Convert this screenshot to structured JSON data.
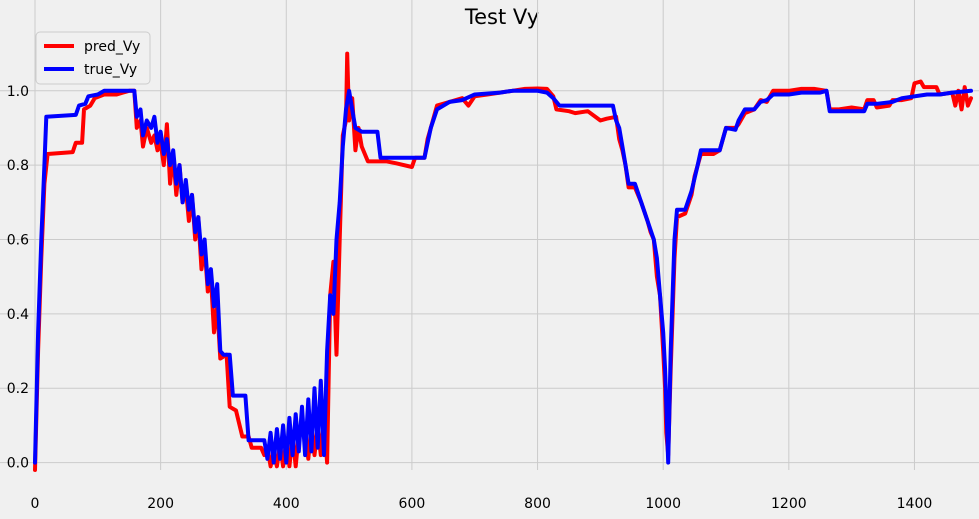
{
  "chart_data": {
    "type": "line",
    "title": "Test Vy",
    "xlabel": "",
    "ylabel": "",
    "xlim": [
      0,
      1490
    ],
    "ylim": [
      -0.02,
      1.15
    ],
    "xticks": [
      0,
      200,
      400,
      600,
      800,
      1000,
      1200,
      1400
    ],
    "yticks": [
      0.0,
      0.2,
      0.4,
      0.6,
      0.8,
      1.0
    ],
    "xtick_labels": [
      "0",
      "200",
      "400",
      "600",
      "800",
      "1000",
      "1200",
      "1400"
    ],
    "ytick_labels": [
      "0.0",
      "0.2",
      "0.4",
      "0.6",
      "0.8",
      "1.0"
    ],
    "grid": true,
    "legend_position": "top-left",
    "series": [
      {
        "name": "pred_Vy",
        "color": "#ff0000",
        "points": [
          [
            0,
            -0.02
          ],
          [
            5,
            0.3
          ],
          [
            10,
            0.55
          ],
          [
            15,
            0.75
          ],
          [
            20,
            0.83
          ],
          [
            60,
            0.835
          ],
          [
            65,
            0.86
          ],
          [
            75,
            0.86
          ],
          [
            78,
            0.95
          ],
          [
            88,
            0.96
          ],
          [
            95,
            0.98
          ],
          [
            110,
            0.99
          ],
          [
            130,
            0.99
          ],
          [
            140,
            0.995
          ],
          [
            150,
            1.0
          ],
          [
            158,
            1.0
          ],
          [
            162,
            0.9
          ],
          [
            168,
            0.92
          ],
          [
            172,
            0.85
          ],
          [
            178,
            0.9
          ],
          [
            185,
            0.86
          ],
          [
            190,
            0.88
          ],
          [
            195,
            0.84
          ],
          [
            200,
            0.86
          ],
          [
            205,
            0.8
          ],
          [
            210,
            0.91
          ],
          [
            215,
            0.75
          ],
          [
            220,
            0.83
          ],
          [
            225,
            0.72
          ],
          [
            230,
            0.8
          ],
          [
            235,
            0.7
          ],
          [
            240,
            0.74
          ],
          [
            245,
            0.65
          ],
          [
            250,
            0.72
          ],
          [
            255,
            0.6
          ],
          [
            260,
            0.66
          ],
          [
            265,
            0.52
          ],
          [
            270,
            0.58
          ],
          [
            275,
            0.46
          ],
          [
            280,
            0.5
          ],
          [
            285,
            0.35
          ],
          [
            290,
            0.42
          ],
          [
            295,
            0.28
          ],
          [
            305,
            0.29
          ],
          [
            310,
            0.15
          ],
          [
            320,
            0.14
          ],
          [
            330,
            0.07
          ],
          [
            340,
            0.07
          ],
          [
            345,
            0.04
          ],
          [
            360,
            0.04
          ],
          [
            365,
            0.02
          ],
          [
            370,
            0.04
          ],
          [
            375,
            -0.01
          ],
          [
            380,
            0.03
          ],
          [
            385,
            -0.01
          ],
          [
            390,
            0.05
          ],
          [
            395,
            -0.01
          ],
          [
            400,
            0.06
          ],
          [
            405,
            -0.01
          ],
          [
            410,
            0.07
          ],
          [
            415,
            -0.01
          ],
          [
            420,
            0.08
          ],
          [
            430,
            0.08
          ],
          [
            435,
            0.01
          ],
          [
            440,
            0.1
          ],
          [
            445,
            0.02
          ],
          [
            450,
            0.1
          ],
          [
            455,
            0.02
          ],
          [
            460,
            0.12
          ],
          [
            465,
            0.0
          ],
          [
            470,
            0.45
          ],
          [
            475,
            0.54
          ],
          [
            480,
            0.29
          ],
          [
            485,
            0.6
          ],
          [
            490,
            0.88
          ],
          [
            495,
            0.92
          ],
          [
            497,
            1.1
          ],
          [
            500,
            0.92
          ],
          [
            505,
            0.98
          ],
          [
            510,
            0.84
          ],
          [
            515,
            0.9
          ],
          [
            520,
            0.85
          ],
          [
            530,
            0.81
          ],
          [
            545,
            0.81
          ],
          [
            560,
            0.81
          ],
          [
            575,
            0.805
          ],
          [
            600,
            0.795
          ],
          [
            605,
            0.82
          ],
          [
            620,
            0.82
          ],
          [
            625,
            0.87
          ],
          [
            630,
            0.9
          ],
          [
            635,
            0.93
          ],
          [
            640,
            0.96
          ],
          [
            660,
            0.97
          ],
          [
            680,
            0.98
          ],
          [
            690,
            0.96
          ],
          [
            700,
            0.985
          ],
          [
            720,
            0.99
          ],
          [
            740,
            0.995
          ],
          [
            760,
            1.0
          ],
          [
            780,
            1.005
          ],
          [
            800,
            1.006
          ],
          [
            815,
            1.005
          ],
          [
            825,
            0.985
          ],
          [
            830,
            0.95
          ],
          [
            850,
            0.945
          ],
          [
            860,
            0.94
          ],
          [
            880,
            0.945
          ],
          [
            900,
            0.92
          ],
          [
            910,
            0.925
          ],
          [
            925,
            0.93
          ],
          [
            930,
            0.87
          ],
          [
            935,
            0.84
          ],
          [
            940,
            0.8
          ],
          [
            945,
            0.74
          ],
          [
            955,
            0.74
          ],
          [
            965,
            0.7
          ],
          [
            975,
            0.65
          ],
          [
            980,
            0.62
          ],
          [
            985,
            0.6
          ],
          [
            990,
            0.5
          ],
          [
            995,
            0.45
          ],
          [
            1000,
            0.3
          ],
          [
            1003,
            0.2
          ],
          [
            1005,
            0.08
          ],
          [
            1008,
            0.02
          ],
          [
            1012,
            0.25
          ],
          [
            1018,
            0.55
          ],
          [
            1022,
            0.66
          ],
          [
            1035,
            0.67
          ],
          [
            1045,
            0.72
          ],
          [
            1050,
            0.77
          ],
          [
            1060,
            0.83
          ],
          [
            1080,
            0.83
          ],
          [
            1090,
            0.84
          ],
          [
            1100,
            0.9
          ],
          [
            1115,
            0.9
          ],
          [
            1120,
            0.91
          ],
          [
            1130,
            0.94
          ],
          [
            1145,
            0.95
          ],
          [
            1155,
            0.975
          ],
          [
            1165,
            0.97
          ],
          [
            1175,
            1.0
          ],
          [
            1200,
            1.0
          ],
          [
            1220,
            1.005
          ],
          [
            1240,
            1.005
          ],
          [
            1260,
            1.0
          ],
          [
            1265,
            0.95
          ],
          [
            1280,
            0.95
          ],
          [
            1300,
            0.955
          ],
          [
            1320,
            0.95
          ],
          [
            1325,
            0.975
          ],
          [
            1335,
            0.975
          ],
          [
            1340,
            0.955
          ],
          [
            1360,
            0.96
          ],
          [
            1365,
            0.975
          ],
          [
            1380,
            0.975
          ],
          [
            1395,
            0.98
          ],
          [
            1400,
            1.02
          ],
          [
            1410,
            1.025
          ],
          [
            1415,
            1.01
          ],
          [
            1435,
            1.01
          ],
          [
            1440,
            0.99
          ],
          [
            1460,
            0.995
          ],
          [
            1465,
            0.96
          ],
          [
            1470,
            1.0
          ],
          [
            1475,
            0.95
          ],
          [
            1480,
            1.01
          ],
          [
            1485,
            0.96
          ],
          [
            1490,
            0.98
          ]
        ]
      },
      {
        "name": "true_Vy",
        "color": "#0000ff",
        "points": [
          [
            0,
            0.0
          ],
          [
            5,
            0.35
          ],
          [
            10,
            0.6
          ],
          [
            15,
            0.8
          ],
          [
            18,
            0.93
          ],
          [
            65,
            0.935
          ],
          [
            70,
            0.96
          ],
          [
            80,
            0.965
          ],
          [
            85,
            0.985
          ],
          [
            100,
            0.99
          ],
          [
            110,
            1.0
          ],
          [
            140,
            1.0
          ],
          [
            150,
            1.0
          ],
          [
            158,
            1.0
          ],
          [
            162,
            0.93
          ],
          [
            168,
            0.95
          ],
          [
            172,
            0.88
          ],
          [
            178,
            0.92
          ],
          [
            185,
            0.9
          ],
          [
            190,
            0.93
          ],
          [
            195,
            0.86
          ],
          [
            200,
            0.89
          ],
          [
            205,
            0.83
          ],
          [
            210,
            0.87
          ],
          [
            215,
            0.8
          ],
          [
            220,
            0.84
          ],
          [
            225,
            0.75
          ],
          [
            230,
            0.8
          ],
          [
            235,
            0.7
          ],
          [
            240,
            0.76
          ],
          [
            245,
            0.68
          ],
          [
            250,
            0.72
          ],
          [
            255,
            0.62
          ],
          [
            260,
            0.66
          ],
          [
            265,
            0.56
          ],
          [
            270,
            0.6
          ],
          [
            275,
            0.48
          ],
          [
            280,
            0.52
          ],
          [
            285,
            0.42
          ],
          [
            290,
            0.48
          ],
          [
            295,
            0.3
          ],
          [
            300,
            0.29
          ],
          [
            310,
            0.29
          ],
          [
            315,
            0.18
          ],
          [
            335,
            0.18
          ],
          [
            340,
            0.06
          ],
          [
            365,
            0.06
          ],
          [
            370,
            0.01
          ],
          [
            375,
            0.08
          ],
          [
            380,
            0.0
          ],
          [
            385,
            0.09
          ],
          [
            390,
            0.01
          ],
          [
            395,
            0.1
          ],
          [
            400,
            0.0
          ],
          [
            405,
            0.12
          ],
          [
            410,
            0.02
          ],
          [
            415,
            0.13
          ],
          [
            420,
            0.03
          ],
          [
            425,
            0.15
          ],
          [
            430,
            0.02
          ],
          [
            435,
            0.17
          ],
          [
            440,
            0.03
          ],
          [
            445,
            0.2
          ],
          [
            450,
            0.04
          ],
          [
            455,
            0.22
          ],
          [
            460,
            0.02
          ],
          [
            465,
            0.3
          ],
          [
            470,
            0.45
          ],
          [
            475,
            0.4
          ],
          [
            480,
            0.6
          ],
          [
            485,
            0.7
          ],
          [
            490,
            0.85
          ],
          [
            495,
            0.95
          ],
          [
            500,
            1.0
          ],
          [
            505,
            0.95
          ],
          [
            510,
            0.9
          ],
          [
            520,
            0.89
          ],
          [
            545,
            0.89
          ],
          [
            550,
            0.82
          ],
          [
            620,
            0.82
          ],
          [
            625,
            0.86
          ],
          [
            630,
            0.9
          ],
          [
            640,
            0.95
          ],
          [
            660,
            0.97
          ],
          [
            680,
            0.975
          ],
          [
            700,
            0.99
          ],
          [
            740,
            0.995
          ],
          [
            760,
            1.0
          ],
          [
            800,
            1.0
          ],
          [
            815,
            0.995
          ],
          [
            825,
            0.98
          ],
          [
            835,
            0.96
          ],
          [
            920,
            0.96
          ],
          [
            925,
            0.92
          ],
          [
            930,
            0.9
          ],
          [
            935,
            0.85
          ],
          [
            940,
            0.8
          ],
          [
            945,
            0.75
          ],
          [
            955,
            0.75
          ],
          [
            965,
            0.7
          ],
          [
            975,
            0.65
          ],
          [
            985,
            0.6
          ],
          [
            990,
            0.55
          ],
          [
            995,
            0.45
          ],
          [
            1000,
            0.35
          ],
          [
            1003,
            0.25
          ],
          [
            1006,
            0.1
          ],
          [
            1008,
            0.0
          ],
          [
            1012,
            0.3
          ],
          [
            1018,
            0.6
          ],
          [
            1022,
            0.68
          ],
          [
            1035,
            0.68
          ],
          [
            1045,
            0.73
          ],
          [
            1055,
            0.8
          ],
          [
            1060,
            0.84
          ],
          [
            1090,
            0.84
          ],
          [
            1100,
            0.9
          ],
          [
            1115,
            0.895
          ],
          [
            1120,
            0.92
          ],
          [
            1130,
            0.95
          ],
          [
            1145,
            0.95
          ],
          [
            1155,
            0.97
          ],
          [
            1165,
            0.975
          ],
          [
            1175,
            0.99
          ],
          [
            1200,
            0.99
          ],
          [
            1220,
            0.995
          ],
          [
            1250,
            0.995
          ],
          [
            1260,
            1.0
          ],
          [
            1265,
            0.945
          ],
          [
            1320,
            0.945
          ],
          [
            1325,
            0.965
          ],
          [
            1340,
            0.965
          ],
          [
            1365,
            0.97
          ],
          [
            1380,
            0.98
          ],
          [
            1420,
            0.99
          ],
          [
            1440,
            0.99
          ],
          [
            1460,
            0.995
          ],
          [
            1490,
            1.0
          ]
        ]
      }
    ]
  }
}
